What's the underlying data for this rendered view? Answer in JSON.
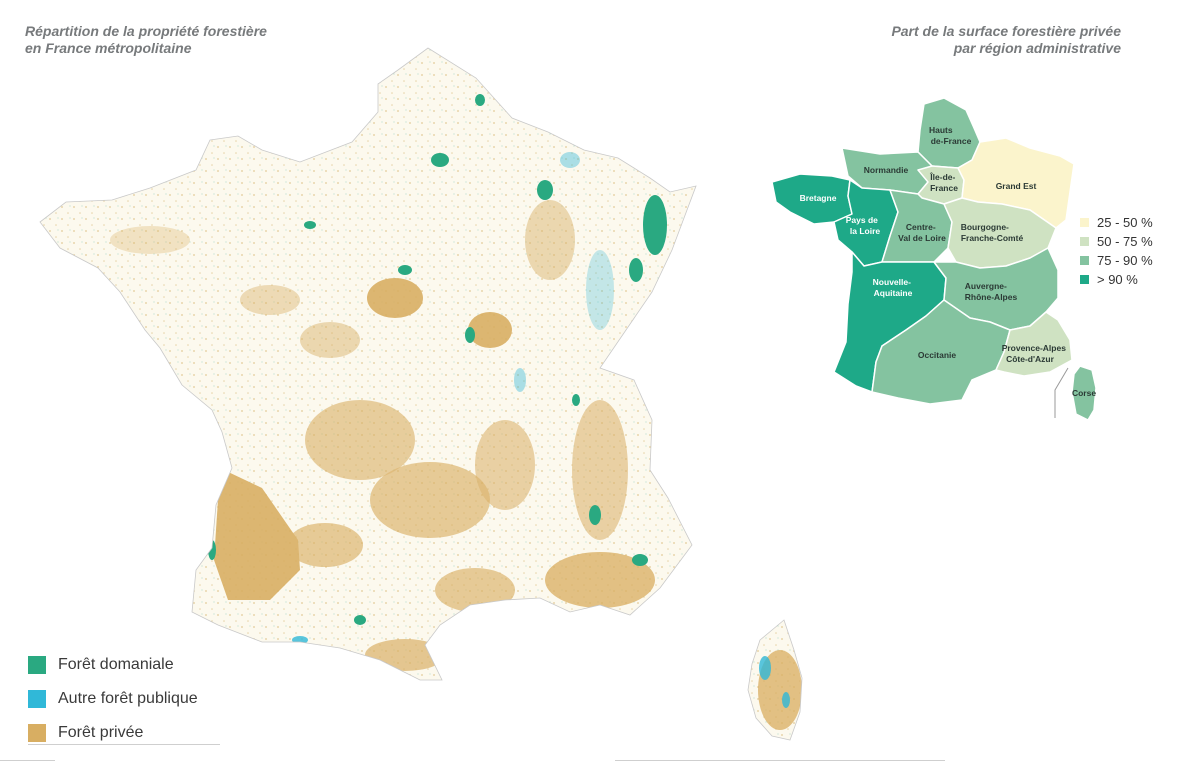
{
  "left_title": {
    "line1": "Répartition de la propriété forestière",
    "line2": "en France métropolitaine"
  },
  "right_title": {
    "line1": "Part de la surface forestière privée",
    "line2": "par région administrative"
  },
  "regions": [
    {
      "name_lines": [
        "Hauts",
        "de-France"
      ],
      "share_class": "75 - 90 %"
    },
    {
      "name_lines": [
        "Normandie"
      ],
      "share_class": "75 - 90 %"
    },
    {
      "name_lines": [
        "Île-de-",
        "France"
      ],
      "share_class": "50 - 75 %"
    },
    {
      "name_lines": [
        "Grand Est"
      ],
      "share_class": "25 - 50 %"
    },
    {
      "name_lines": [
        "Bretagne"
      ],
      "share_class": "> 90 %"
    },
    {
      "name_lines": [
        "Pays de",
        "la Loire"
      ],
      "share_class": "> 90 %"
    },
    {
      "name_lines": [
        "Centre-",
        "Val de Loire"
      ],
      "share_class": "75 - 90 %"
    },
    {
      "name_lines": [
        "Bourgogne-",
        "Franche-Comté"
      ],
      "share_class": "50 - 75 %"
    },
    {
      "name_lines": [
        "Nouvelle-",
        "Aquitaine"
      ],
      "share_class": "> 90 %"
    },
    {
      "name_lines": [
        "Auvergne-",
        "Rhône-Alpes"
      ],
      "share_class": "75 - 90 %"
    },
    {
      "name_lines": [
        "Occitanie"
      ],
      "share_class": "75 - 90 %"
    },
    {
      "name_lines": [
        "Provence-Alpes",
        "Côte-d'Azur"
      ],
      "share_class": "50 - 75 %"
    },
    {
      "name_lines": [
        "Corse"
      ],
      "share_class": "75 - 90 %"
    }
  ],
  "region_legend": [
    {
      "label": "25 - 50 %",
      "color": "#fbf4cc"
    },
    {
      "label": "50 - 75 %",
      "color": "#cfe2c2"
    },
    {
      "label": "75 - 90 %",
      "color": "#84c3a0"
    },
    {
      "label": "> 90 %",
      "color": "#1ea988"
    }
  ],
  "ownership_legend": [
    {
      "label": "Forêt domaniale",
      "color": "#2aa981"
    },
    {
      "label": "Autre forêt publique",
      "color": "#30b8d8"
    },
    {
      "label": "Forêt privée",
      "color": "#d8ae62"
    }
  ]
}
